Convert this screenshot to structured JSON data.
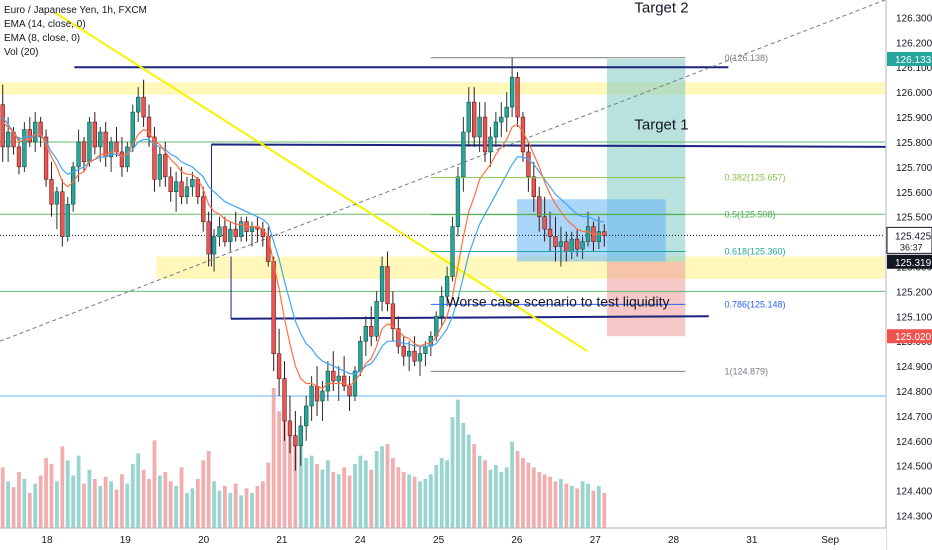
{
  "legend": {
    "symbol": "Euro / Japanese Yen, 1h, FXCM",
    "ema14": "EMA (14, close, 0)",
    "ema8": "EMA (8, close, 0)",
    "vol": "Vol (20)"
  },
  "chart_data": {
    "type": "candlestick",
    "ylim": [
      124.25,
      126.37
    ],
    "y_ticks": [
      124.3,
      124.4,
      124.5,
      124.6,
      124.7,
      124.8,
      124.9,
      125.0,
      125.1,
      125.2,
      125.3,
      125.4,
      125.5,
      125.6,
      125.7,
      125.8,
      125.9,
      126.0,
      126.1,
      126.2,
      126.3
    ],
    "x_labels": [
      {
        "label": "18",
        "t": 0.6
      },
      {
        "label": "19",
        "t": 1.6
      },
      {
        "label": "20",
        "t": 2.6
      },
      {
        "label": "21",
        "t": 3.6
      },
      {
        "label": "24",
        "t": 4.6
      },
      {
        "label": "25",
        "t": 5.6
      },
      {
        "label": "26",
        "t": 6.6
      },
      {
        "label": "27",
        "t": 7.6
      },
      {
        "label": "28",
        "t": 8.6
      },
      {
        "label": "31",
        "t": 9.6
      },
      {
        "label": "Sep",
        "t": 10.6
      }
    ],
    "x_range": [
      0,
      11.3
    ],
    "current_price": {
      "value": 125.425,
      "label": "125.425",
      "countdown": "36:37"
    },
    "price_badges": [
      {
        "value": 126.133,
        "label": "126.133",
        "color": "#26a69a"
      },
      {
        "value": 125.319,
        "label": "125.319",
        "color": "#131722"
      },
      {
        "value": 125.02,
        "label": "125.020",
        "color": "#ef5350"
      }
    ],
    "fib_levels": [
      {
        "label": "0(126.138)",
        "value": 126.138,
        "color": "#787b86"
      },
      {
        "label": "0.382(125.657)",
        "value": 125.657,
        "color": "#8bc34a"
      },
      {
        "label": "0.5(125.508)",
        "value": 125.508,
        "color": "#4caf50"
      },
      {
        "label": "0.618(125.360)",
        "value": 125.36,
        "color": "#26a69a"
      },
      {
        "label": "0.786(125.148)",
        "value": 125.148,
        "color": "#2962ff"
      },
      {
        "label": "1(124.879)",
        "value": 124.879,
        "color": "#787b86"
      }
    ],
    "annotations": [
      {
        "text": "Target 2",
        "t": 8.1,
        "y": 126.34
      },
      {
        "text": "Target 1",
        "t": 8.1,
        "y": 125.87
      },
      {
        "text": "Worse case scenario to test liquidity",
        "t": 5.7,
        "y": 125.16
      }
    ],
    "position": {
      "entry": 125.319,
      "target": 126.133,
      "stop": 125.02,
      "t_start": 7.75,
      "t_end": 8.75
    },
    "candles": [
      [
        125.95,
        126.03,
        125.72,
        125.78
      ],
      [
        125.78,
        125.9,
        125.72,
        125.84
      ],
      [
        125.84,
        125.86,
        125.75,
        125.78
      ],
      [
        125.78,
        125.82,
        125.67,
        125.7
      ],
      [
        125.7,
        125.88,
        125.68,
        125.85
      ],
      [
        125.85,
        125.9,
        125.78,
        125.8
      ],
      [
        125.8,
        125.92,
        125.76,
        125.88
      ],
      [
        125.88,
        125.9,
        125.78,
        125.82
      ],
      [
        125.82,
        125.85,
        125.62,
        125.65
      ],
      [
        125.65,
        125.72,
        125.5,
        125.55
      ],
      [
        125.55,
        125.62,
        125.45,
        125.6
      ],
      [
        125.6,
        125.65,
        125.38,
        125.42
      ],
      [
        125.42,
        125.58,
        125.4,
        125.55
      ],
      [
        125.55,
        125.72,
        125.52,
        125.7
      ],
      [
        125.7,
        125.85,
        125.64,
        125.8
      ],
      [
        125.8,
        125.82,
        125.68,
        125.72
      ],
      [
        125.72,
        125.9,
        125.7,
        125.88
      ],
      [
        125.88,
        125.92,
        125.75,
        125.78
      ],
      [
        125.78,
        125.86,
        125.72,
        125.84
      ],
      [
        125.84,
        125.88,
        125.7,
        125.74
      ],
      [
        125.74,
        125.82,
        125.68,
        125.8
      ],
      [
        125.8,
        125.86,
        125.74,
        125.76
      ],
      [
        125.76,
        125.82,
        125.66,
        125.7
      ],
      [
        125.7,
        125.8,
        125.68,
        125.78
      ],
      [
        125.78,
        125.95,
        125.76,
        125.92
      ],
      [
        125.92,
        126.02,
        125.88,
        125.98
      ],
      [
        125.98,
        126.05,
        125.86,
        125.9
      ],
      [
        125.9,
        125.95,
        125.78,
        125.82
      ],
      [
        125.82,
        125.86,
        125.6,
        125.65
      ],
      [
        125.65,
        125.78,
        125.62,
        125.75
      ],
      [
        125.75,
        125.8,
        125.62,
        125.66
      ],
      [
        125.66,
        125.7,
        125.56,
        125.6
      ],
      [
        125.6,
        125.68,
        125.52,
        125.64
      ],
      [
        125.64,
        125.7,
        125.55,
        125.58
      ],
      [
        125.58,
        125.66,
        125.55,
        125.62
      ],
      [
        125.62,
        125.68,
        125.58,
        125.65
      ],
      [
        125.65,
        125.66,
        125.55,
        125.58
      ],
      [
        125.58,
        125.62,
        125.44,
        125.48
      ],
      [
        125.48,
        125.52,
        125.3,
        125.35
      ],
      [
        125.35,
        125.45,
        125.28,
        125.42
      ],
      [
        125.42,
        125.5,
        125.38,
        125.46
      ],
      [
        125.46,
        125.5,
        125.38,
        125.4
      ],
      [
        125.4,
        125.48,
        125.36,
        125.45
      ],
      [
        125.45,
        125.52,
        125.4,
        125.42
      ],
      [
        125.42,
        125.5,
        125.4,
        125.48
      ],
      [
        125.48,
        125.5,
        125.4,
        125.44
      ],
      [
        125.44,
        125.48,
        125.38,
        125.46
      ],
      [
        125.46,
        125.5,
        125.4,
        125.45
      ],
      [
        125.45,
        125.48,
        125.38,
        125.42
      ],
      [
        125.42,
        125.46,
        125.3,
        125.32
      ],
      [
        125.32,
        125.34,
        124.88,
        124.95
      ],
      [
        124.95,
        125.05,
        124.78,
        124.85
      ],
      [
        124.85,
        124.92,
        124.6,
        124.68
      ],
      [
        124.68,
        124.78,
        124.55,
        124.62
      ],
      [
        124.62,
        124.72,
        124.48,
        124.58
      ],
      [
        124.58,
        124.7,
        124.5,
        124.66
      ],
      [
        124.66,
        124.78,
        124.6,
        124.74
      ],
      [
        124.74,
        124.86,
        124.68,
        124.82
      ],
      [
        124.82,
        124.9,
        124.7,
        124.76
      ],
      [
        124.76,
        124.84,
        124.68,
        124.8
      ],
      [
        124.8,
        124.92,
        124.76,
        124.88
      ],
      [
        124.88,
        124.96,
        124.8,
        124.84
      ],
      [
        124.84,
        124.9,
        124.76,
        124.86
      ],
      [
        124.86,
        124.94,
        124.8,
        124.82
      ],
      [
        124.82,
        124.86,
        124.72,
        124.78
      ],
      [
        124.78,
        124.9,
        124.76,
        124.88
      ],
      [
        124.88,
        125.02,
        124.86,
        125.0
      ],
      [
        125.0,
        125.1,
        124.94,
        125.06
      ],
      [
        125.06,
        125.14,
        124.98,
        125.02
      ],
      [
        125.02,
        125.2,
        125.0,
        125.16
      ],
      [
        125.16,
        125.34,
        125.12,
        125.3
      ],
      [
        125.3,
        125.36,
        125.12,
        125.15
      ],
      [
        125.15,
        125.2,
        125.0,
        125.05
      ],
      [
        125.05,
        125.1,
        124.95,
        124.98
      ],
      [
        124.98,
        125.02,
        124.9,
        124.94
      ],
      [
        124.94,
        125.0,
        124.88,
        124.96
      ],
      [
        124.96,
        125.02,
        124.9,
        124.92
      ],
      [
        124.92,
        124.98,
        124.86,
        124.95
      ],
      [
        124.95,
        125.0,
        124.9,
        124.98
      ],
      [
        124.98,
        125.04,
        124.94,
        125.02
      ],
      [
        125.02,
        125.12,
        125.0,
        125.1
      ],
      [
        125.1,
        125.22,
        125.06,
        125.18
      ],
      [
        125.18,
        125.3,
        125.14,
        125.26
      ],
      [
        125.26,
        125.5,
        125.24,
        125.46
      ],
      [
        125.46,
        125.7,
        125.42,
        125.66
      ],
      [
        125.66,
        125.9,
        125.6,
        125.84
      ],
      [
        125.84,
        126.02,
        125.78,
        125.96
      ],
      [
        125.96,
        126.02,
        125.78,
        125.82
      ],
      [
        125.82,
        125.96,
        125.76,
        125.9
      ],
      [
        125.9,
        125.96,
        125.72,
        125.76
      ],
      [
        125.76,
        125.86,
        125.7,
        125.82
      ],
      [
        125.82,
        125.92,
        125.78,
        125.88
      ],
      [
        125.88,
        125.96,
        125.82,
        125.9
      ],
      [
        125.9,
        126.0,
        125.84,
        125.94
      ],
      [
        125.94,
        126.14,
        125.9,
        126.06
      ],
      [
        126.06,
        126.08,
        125.86,
        125.9
      ],
      [
        125.9,
        125.92,
        125.72,
        125.76
      ],
      [
        125.76,
        125.8,
        125.6,
        125.66
      ],
      [
        125.66,
        125.72,
        125.52,
        125.58
      ],
      [
        125.58,
        125.62,
        125.44,
        125.5
      ],
      [
        125.5,
        125.58,
        125.4,
        125.45
      ],
      [
        125.45,
        125.52,
        125.36,
        125.42
      ],
      [
        125.42,
        125.5,
        125.32,
        125.38
      ],
      [
        125.38,
        125.46,
        125.3,
        125.4
      ],
      [
        125.4,
        125.44,
        125.32,
        125.36
      ],
      [
        125.36,
        125.44,
        125.33,
        125.41
      ],
      [
        125.41,
        125.45,
        125.34,
        125.37
      ],
      [
        125.37,
        125.42,
        125.33,
        125.4
      ],
      [
        125.4,
        125.52,
        125.38,
        125.46
      ],
      [
        125.46,
        125.48,
        125.36,
        125.4
      ],
      [
        125.4,
        125.5,
        125.37,
        125.44
      ],
      [
        125.44,
        125.47,
        125.38,
        125.425
      ]
    ],
    "volume": [
      52,
      40,
      35,
      48,
      42,
      30,
      38,
      45,
      60,
      55,
      40,
      70,
      58,
      45,
      62,
      38,
      50,
      42,
      36,
      44,
      40,
      33,
      46,
      38,
      55,
      64,
      50,
      42,
      75,
      45,
      48,
      40,
      36,
      52,
      30,
      34,
      42,
      58,
      66,
      40,
      32,
      36,
      30,
      38,
      28,
      34,
      30,
      36,
      40,
      56,
      120,
      100,
      110,
      90,
      80,
      70,
      60,
      62,
      55,
      50,
      58,
      48,
      46,
      52,
      45,
      55,
      62,
      58,
      50,
      66,
      70,
      72,
      60,
      52,
      48,
      46,
      44,
      40,
      42,
      46,
      54,
      60,
      58,
      95,
      110,
      90,
      80,
      72,
      62,
      58,
      50,
      54,
      48,
      52,
      74,
      66,
      60,
      56,
      52,
      48,
      46,
      44,
      40,
      42,
      38,
      36,
      34,
      40,
      38,
      32,
      36,
      30
    ],
    "ema14": [
      125.9,
      125.87,
      125.84,
      125.81,
      125.82,
      125.82,
      125.83,
      125.83,
      125.8,
      125.76,
      125.73,
      125.69,
      125.67,
      125.68,
      125.69,
      125.7,
      125.72,
      125.73,
      125.74,
      125.74,
      125.75,
      125.75,
      125.74,
      125.75,
      125.77,
      125.8,
      125.81,
      125.81,
      125.79,
      125.78,
      125.77,
      125.75,
      125.74,
      125.72,
      125.71,
      125.7,
      125.68,
      125.66,
      125.62,
      125.6,
      125.58,
      125.56,
      125.55,
      125.54,
      125.53,
      125.52,
      125.51,
      125.5,
      125.49,
      125.47,
      125.4,
      125.33,
      125.24,
      125.16,
      125.08,
      125.03,
      124.99,
      124.97,
      124.94,
      124.92,
      124.91,
      124.9,
      124.89,
      124.88,
      124.87,
      124.87,
      124.88,
      124.9,
      124.91,
      124.94,
      124.98,
      125.0,
      125.0,
      125.0,
      124.99,
      124.99,
      124.98,
      124.98,
      124.98,
      124.98,
      124.99,
      125.02,
      125.05,
      125.1,
      125.17,
      125.26,
      125.35,
      125.41,
      125.47,
      125.51,
      125.55,
      125.59,
      125.63,
      125.67,
      125.71,
      125.74,
      125.74,
      125.73,
      125.71,
      125.68,
      125.65,
      125.62,
      125.59,
      125.57,
      125.55,
      125.53,
      125.51,
      125.5,
      125.5,
      125.49,
      125.48,
      125.48
    ],
    "ema8": [
      125.88,
      125.86,
      125.84,
      125.8,
      125.81,
      125.81,
      125.83,
      125.83,
      125.79,
      125.74,
      125.7,
      125.64,
      125.62,
      125.64,
      125.67,
      125.68,
      125.72,
      125.73,
      125.75,
      125.75,
      125.76,
      125.76,
      125.74,
      125.75,
      125.79,
      125.83,
      125.85,
      125.84,
      125.8,
      125.79,
      125.76,
      125.73,
      125.71,
      125.68,
      125.67,
      125.67,
      125.65,
      125.61,
      125.55,
      125.52,
      125.51,
      125.49,
      125.48,
      125.47,
      125.47,
      125.46,
      125.46,
      125.46,
      125.45,
      125.42,
      125.31,
      125.21,
      125.09,
      124.99,
      124.9,
      124.85,
      124.83,
      124.83,
      124.82,
      124.81,
      124.83,
      124.83,
      124.83,
      124.83,
      124.82,
      124.84,
      124.87,
      124.91,
      124.93,
      124.98,
      125.05,
      125.07,
      125.06,
      125.04,
      125.02,
      125.01,
      124.99,
      124.98,
      124.99,
      124.99,
      125.02,
      125.06,
      125.1,
      125.18,
      125.3,
      125.42,
      125.52,
      125.58,
      125.65,
      125.68,
      125.71,
      125.75,
      125.78,
      125.81,
      125.86,
      125.87,
      125.84,
      125.8,
      125.75,
      125.7,
      125.64,
      125.59,
      125.55,
      125.52,
      125.49,
      125.47,
      125.45,
      125.44,
      125.44,
      125.43,
      125.43,
      125.43
    ]
  }
}
